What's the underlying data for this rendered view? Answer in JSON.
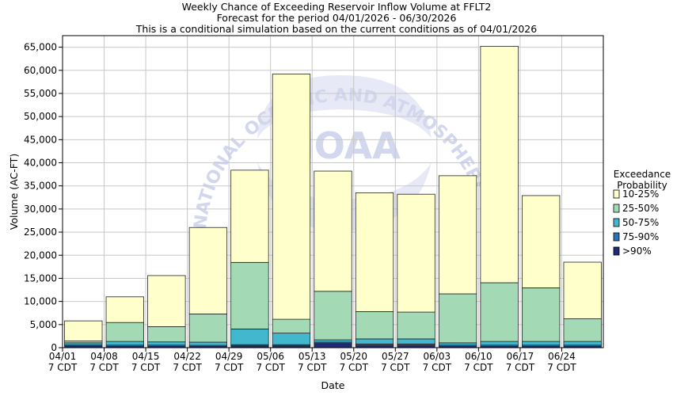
{
  "chart_data": {
    "type": "bar",
    "stacked": true,
    "title": "Weekly Chance of Exceeding Reservoir Inflow Volume at FFLT2",
    "subtitle_1": "Forecast for the period 04/01/2026 - 06/30/2026",
    "subtitle_2": "This is a conditional simulation based on the current conditions as of 04/01/2026",
    "xlabel": "Date",
    "ylabel": "Volume (AC-FT)",
    "ylim": [
      0,
      67500
    ],
    "yticks": [
      0,
      5000,
      10000,
      15000,
      20000,
      25000,
      30000,
      35000,
      40000,
      45000,
      50000,
      55000,
      60000,
      65000
    ],
    "ytick_labels": [
      "0",
      "5,000",
      "10,000",
      "15,000",
      "20,000",
      "25,000",
      "30,000",
      "35,000",
      "40,000",
      "45,000",
      "50,000",
      "55,000",
      "60,000",
      "65,000"
    ],
    "grid": true,
    "legend_position": "right",
    "legend_title_1": "Exceedance",
    "legend_title_2": "Probability",
    "tick_labels_line1": [
      "04/01",
      "04/08",
      "04/15",
      "04/22",
      "04/29",
      "05/06",
      "05/13",
      "05/20",
      "05/27",
      "06/03",
      "06/10",
      "06/17",
      "06/24"
    ],
    "tick_labels_line2": [
      "7 CDT",
      "7 CDT",
      "7 CDT",
      "7 CDT",
      "7 CDT",
      "7 CDT",
      "7 CDT",
      "7 CDT",
      "7 CDT",
      "7 CDT",
      "7 CDT",
      "7 CDT",
      "7 CDT"
    ],
    "series": [
      {
        "name": ">90%",
        "color": "#1f2a7a",
        "values": [
          350,
          250,
          250,
          250,
          400,
          400,
          900,
          500,
          500,
          250,
          250,
          250,
          250
        ]
      },
      {
        "name": "75-90%",
        "color": "#2a74b4",
        "values": [
          250,
          300,
          300,
          250,
          250,
          250,
          300,
          300,
          300,
          300,
          300,
          300,
          300
        ]
      },
      {
        "name": "50-75%",
        "color": "#43b7cd",
        "values": [
          450,
          800,
          700,
          700,
          3400,
          2500,
          500,
          1100,
          1100,
          500,
          800,
          800,
          800
        ]
      },
      {
        "name": "25-50%",
        "color": "#a3dab5",
        "values": [
          400,
          4100,
          3300,
          6100,
          14400,
          3000,
          10500,
          5900,
          5800,
          10600,
          12700,
          11600,
          4900
        ]
      },
      {
        "name": "10-25%",
        "color": "#ffffcc",
        "values": [
          4350,
          5550,
          11050,
          18700,
          19950,
          53050,
          26000,
          25700,
          25500,
          25550,
          51150,
          19950,
          12250
        ]
      }
    ],
    "colors": {
      "edge": "#222222",
      "grid": "#c8c8c8",
      "background": "#ffffff"
    }
  },
  "watermark": {
    "logo_text": "NOAA",
    "arc_text": "NATIONAL OCEANIC AND ATMOSPHERIC ADMINISTRATION"
  }
}
